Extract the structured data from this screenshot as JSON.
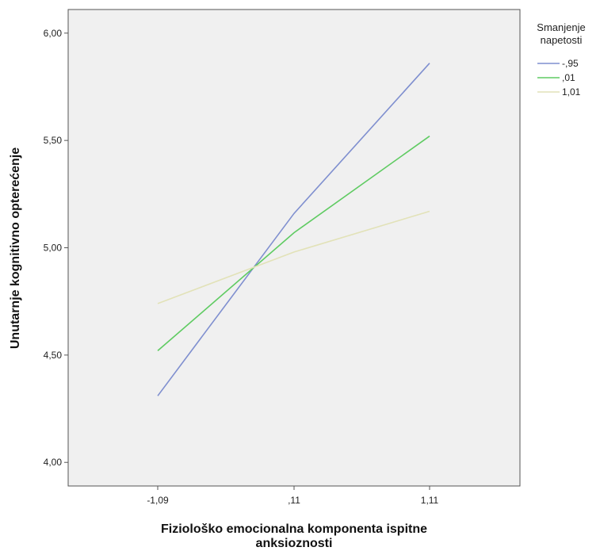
{
  "chart_data": {
    "type": "line",
    "xlabel": [
      "Fiziološko emocionalna komponenta ispitne",
      "anksioznosti"
    ],
    "ylabel": "Unutarnje kognitivno opterećenje",
    "categories": [
      "-1,09",
      ",11",
      "1,11"
    ],
    "yticks": [
      "4,00",
      "4,50",
      "5,00",
      "5,50",
      "6,00"
    ],
    "ylim": [
      3.89,
      6.11
    ],
    "grid": false,
    "legend": {
      "title": [
        "Smanjenje",
        "napetosti"
      ],
      "placement": "right"
    },
    "series": [
      {
        "name": "-,95",
        "values": [
          4.31,
          5.16,
          5.86
        ],
        "color": "#7f8fcf"
      },
      {
        "name": ",01",
        "values": [
          4.52,
          5.07,
          5.52
        ],
        "color": "#5fcb62"
      },
      {
        "name": "1,01",
        "values": [
          4.74,
          4.98,
          5.17
        ],
        "color": "#e2e2b8"
      }
    ],
    "plot_background": "#f0f0f0"
  }
}
